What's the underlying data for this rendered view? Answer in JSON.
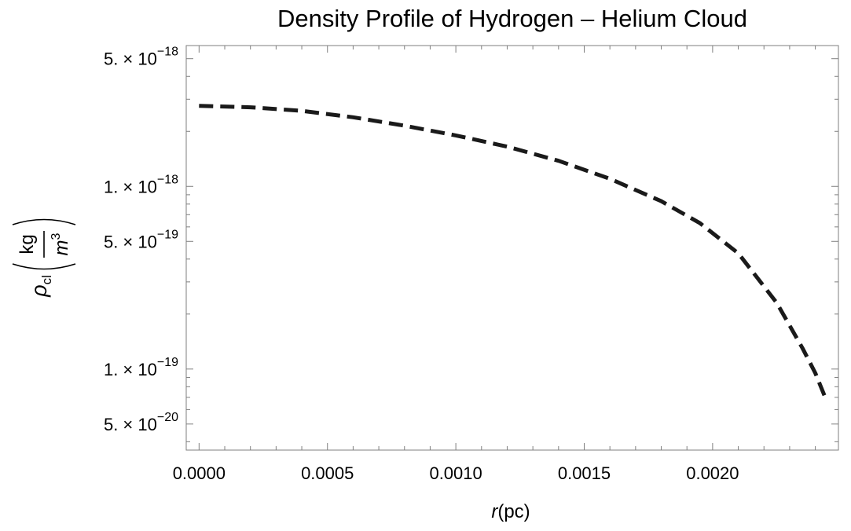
{
  "chart_data": {
    "type": "line",
    "title": "Density Profile of Hydrogen – Helium Cloud",
    "xlabel": {
      "var": "r",
      "unit": "(pc)"
    },
    "ylabel": {
      "symbol": "ρ",
      "subscript": "cl",
      "unit_numerator": "kg",
      "unit_denominator": "m",
      "unit_denominator_power": "3"
    },
    "xlim": [
      -5e-05,
      0.00249
    ],
    "ylim": [
      3.6e-20,
      5.9e-18
    ],
    "y_scale": "log",
    "grid": false,
    "line_style": "dashed",
    "line_color": "#1a1a1a",
    "x_ticks": [
      {
        "value": 0.0,
        "label": "0.0000"
      },
      {
        "value": 0.0005,
        "label": "0.0005"
      },
      {
        "value": 0.001,
        "label": "0.0010"
      },
      {
        "value": 0.0015,
        "label": "0.0015"
      },
      {
        "value": 0.002,
        "label": "0.0020"
      }
    ],
    "y_ticks": [
      {
        "value": 5e-18,
        "mantissa": "5. × 10",
        "exponent": "−18"
      },
      {
        "value": 1e-18,
        "mantissa": "1. × 10",
        "exponent": "−18"
      },
      {
        "value": 5e-19,
        "mantissa": "5. × 10",
        "exponent": "−19"
      },
      {
        "value": 1e-19,
        "mantissa": "1. × 10",
        "exponent": "−19"
      },
      {
        "value": 5e-20,
        "mantissa": "5. × 10",
        "exponent": "−20"
      }
    ],
    "series": [
      {
        "x": [
          0.0,
          0.0002,
          0.0004,
          0.0006,
          0.0008,
          0.001,
          0.0012,
          0.0014,
          0.0016,
          0.0018,
          0.00195,
          0.0021,
          0.00225,
          0.00235,
          0.0024,
          0.00244
        ],
        "y": [
          2.76e-18,
          2.71e-18,
          2.59e-18,
          2.39e-18,
          2.15e-18,
          1.9e-18,
          1.65e-18,
          1.38e-18,
          1.1e-18,
          8.3e-19,
          6.3e-19,
          4.3e-19,
          2.3e-19,
          1.3e-19,
          9.5e-20,
          6.9e-20
        ]
      }
    ]
  }
}
